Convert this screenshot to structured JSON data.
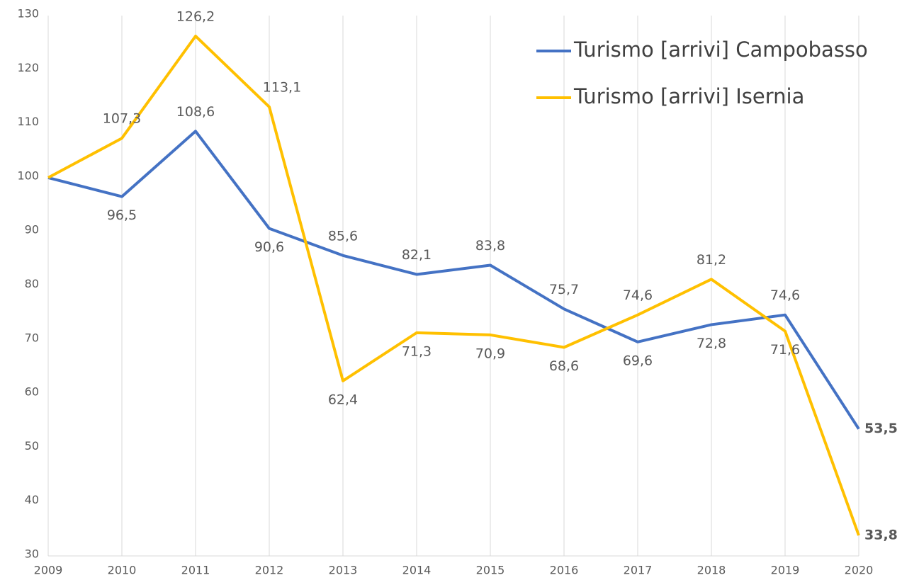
{
  "chart_data": {
    "type": "line",
    "categories": [
      "2009",
      "2010",
      "2011",
      "2012",
      "2013",
      "2014",
      "2015",
      "2016",
      "2017",
      "2018",
      "2019",
      "2020"
    ],
    "series": [
      {
        "name": "Turismo [arrivi] Campobasso",
        "color": "#4472c4",
        "values": [
          100,
          96.5,
          108.6,
          90.6,
          85.6,
          82.1,
          83.8,
          75.7,
          69.6,
          72.8,
          74.6,
          53.5
        ],
        "value_labels": [
          null,
          "96,5",
          "108,6",
          "90,6",
          "85,6",
          "82,1",
          "83,8",
          "75,7",
          "69,6",
          "72,8",
          "74,6",
          "53,5"
        ]
      },
      {
        "name": "Turismo [arrivi] Isernia",
        "color": "#ffc000",
        "values": [
          100,
          107.3,
          126.2,
          113.1,
          62.4,
          71.3,
          70.9,
          68.6,
          74.6,
          81.2,
          71.6,
          33.8
        ],
        "value_labels": [
          null,
          "107,3",
          "126,2",
          "113,1",
          "62,4",
          "71,3",
          "70,9",
          "68,6",
          "74,6",
          "81,2",
          "71,6",
          "33,8"
        ]
      }
    ],
    "ylim": [
      30,
      130
    ],
    "yticks": [
      30,
      40,
      50,
      60,
      70,
      80,
      90,
      100,
      110,
      120,
      130
    ],
    "xgrid": true,
    "legend": "top-right"
  }
}
